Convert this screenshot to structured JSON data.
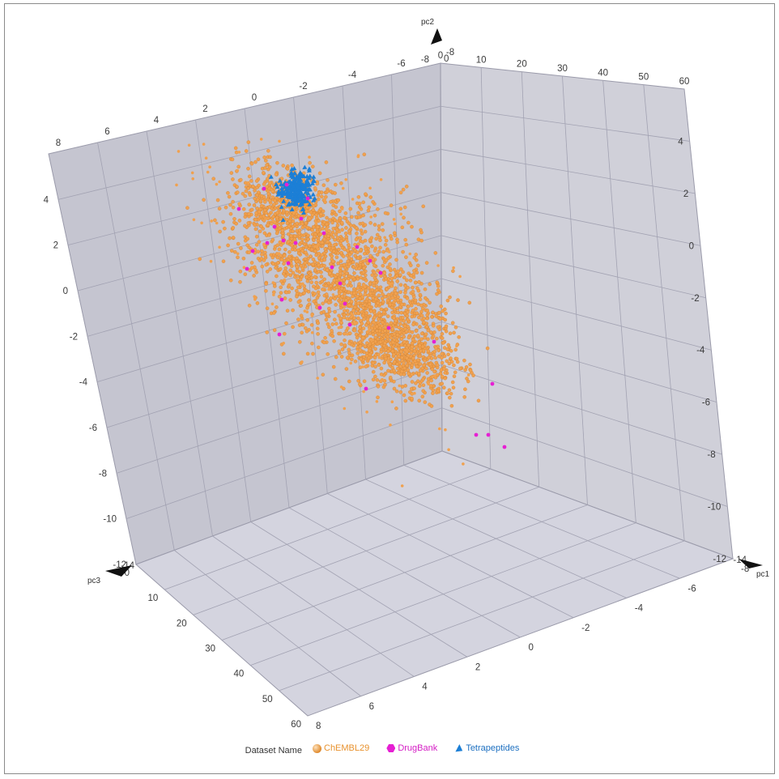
{
  "chart_data": {
    "type": "scatter",
    "projection": "3d",
    "axes": {
      "x": {
        "label": "pc1",
        "ticks": [
          "-8",
          "-6",
          "-4",
          "-2",
          "0",
          "2",
          "4",
          "6",
          "8"
        ],
        "range": [
          -8,
          8
        ]
      },
      "y": {
        "label": "pc2",
        "ticks": [
          "-12",
          "-10",
          "-8",
          "-6",
          "-4",
          "-2",
          "0",
          "2",
          "4"
        ],
        "range": [
          -14,
          4
        ]
      },
      "z": {
        "label": "pc3",
        "ticks": [
          "0",
          "10",
          "20",
          "30",
          "40",
          "50",
          "60"
        ],
        "range": [
          0,
          60
        ]
      }
    },
    "corner_labels": [
      "-14",
      "-14",
      "-8",
      "0"
    ],
    "back_wall_pc1_ticks": [
      "8",
      "6",
      "4",
      "2",
      "0",
      "-2",
      "-4",
      "-6",
      "-8"
    ],
    "back_wall_pc3_ticks": [
      "0",
      "10",
      "20",
      "30",
      "40",
      "50",
      "60"
    ],
    "back_wall_pc2_ticks": [
      "4",
      "2",
      "0",
      "-2",
      "-4",
      "-6",
      "-8",
      "-10",
      "-12"
    ],
    "side_wall_pc2_ticks": [
      "4",
      "2",
      "0",
      "-2",
      "-4",
      "-6",
      "-8",
      "-10",
      "-12"
    ],
    "grid": true,
    "legend": {
      "title": "Dataset Name",
      "position": "bottom-center"
    },
    "series": [
      {
        "name": "ChEMBL29",
        "color": "#f0a14f",
        "marker": "sphere",
        "approx_points": 2600,
        "center": [
          1.5,
          -2.0,
          5
        ],
        "spread": [
          2.5,
          2.5,
          8
        ]
      },
      {
        "name": "DrugBank",
        "color": "#e61fd3",
        "marker": "hexagon",
        "approx_points": 45
      },
      {
        "name": "Tetrapeptides",
        "color": "#1c7fd6",
        "marker": "tetrahedron",
        "approx_points": 240,
        "center": [
          -2.5,
          3.4,
          2
        ],
        "spread": [
          0.6,
          0.6,
          0.5
        ]
      }
    ]
  }
}
